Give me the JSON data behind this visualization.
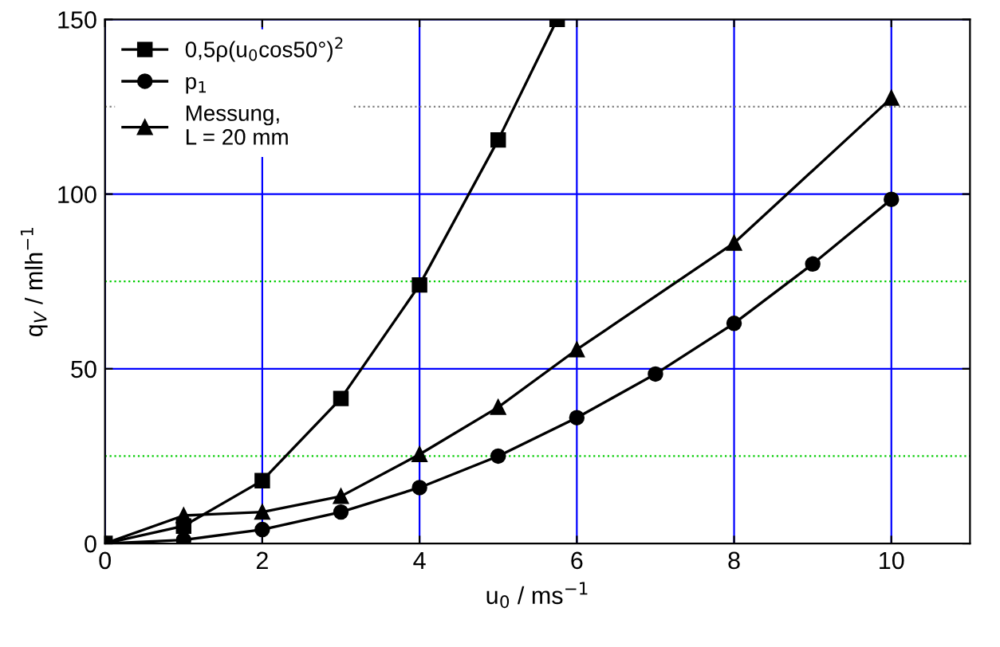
{
  "chart_data": {
    "type": "line",
    "xlabel": "u$_{0}$ / ms$^{−1}$",
    "ylabel": "q$_{V}$ / mlh$^{−1}$",
    "xlim": [
      0,
      11
    ],
    "xticks": [
      0,
      2,
      4,
      6,
      8,
      10
    ],
    "ylim": [
      0,
      150
    ],
    "yticks": [
      0,
      50,
      100,
      150
    ],
    "grid": true,
    "legend": "top left",
    "line_style": "solid",
    "series": [
      {
        "name": "0,5ρ(u$_{0}$cos50°)$^{2}$",
        "color": "#000000",
        "marker": "square",
        "x": [
          0,
          1,
          2,
          3,
          4,
          5,
          5.75
        ],
        "values": [
          0,
          5,
          18,
          41.5,
          74,
          115.5,
          150
        ]
      },
      {
        "name": "p$_{1}$",
        "color": "#000000",
        "marker": "circle",
        "x": [
          0,
          1,
          2,
          3,
          4,
          5,
          6,
          7,
          8,
          9,
          10
        ],
        "values": [
          0,
          1,
          4,
          9,
          16,
          25,
          36,
          48.5,
          63,
          80,
          98.5
        ]
      },
      {
        "name": "Messung,\nL = 20 mm",
        "color": "#000000",
        "marker": "triangle",
        "x": [
          0,
          1,
          2,
          3,
          4,
          5,
          6,
          8,
          10
        ],
        "values": [
          0,
          8,
          9,
          13.5,
          25.5,
          39,
          55.5,
          86,
          127.5
        ]
      }
    ],
    "ref_lines": [
      {
        "axis": "y",
        "value": 25,
        "color": "#00cc00",
        "line_style": "dotted"
      },
      {
        "axis": "y",
        "value": 75,
        "color": "#00cc00",
        "line_style": "dotted"
      },
      {
        "axis": "y",
        "value": 125,
        "color": "#808080",
        "line_style": "dotted"
      }
    ]
  }
}
